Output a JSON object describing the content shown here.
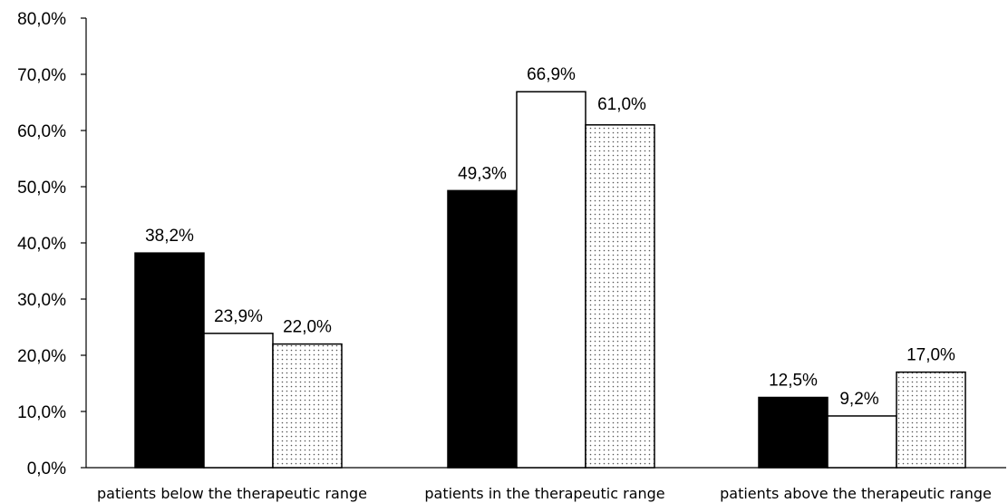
{
  "chart_data": {
    "type": "bar",
    "title": "",
    "xlabel": "",
    "ylabel": "",
    "ylim": [
      0,
      80
    ],
    "y_ticks": [
      "0,0%",
      "10,0%",
      "20,0%",
      "30,0%",
      "40,0%",
      "50,0%",
      "60,0%",
      "70,0%",
      "80,0%"
    ],
    "categories": [
      "patients below the therapeutic range",
      "patients in the therapeutic range",
      "patients above the therapeutic range"
    ],
    "series": [
      {
        "fill": "solid-black",
        "values": [
          38.2,
          49.3,
          12.5
        ],
        "labels": [
          "38,2%",
          "49,3%",
          "12,5%"
        ]
      },
      {
        "fill": "white",
        "values": [
          23.9,
          66.9,
          9.2
        ],
        "labels": [
          "23,9%",
          "66,9%",
          "9,2%"
        ]
      },
      {
        "fill": "dotted",
        "values": [
          22.0,
          61.0,
          17.0
        ],
        "labels": [
          "22,0%",
          "61,0%",
          "17,0%"
        ]
      }
    ],
    "grid": false,
    "legend": "none",
    "colors": {
      "axis": "#000000",
      "bar_solid": "#000000",
      "bar_white": "#ffffff",
      "dots": "#555555"
    }
  }
}
